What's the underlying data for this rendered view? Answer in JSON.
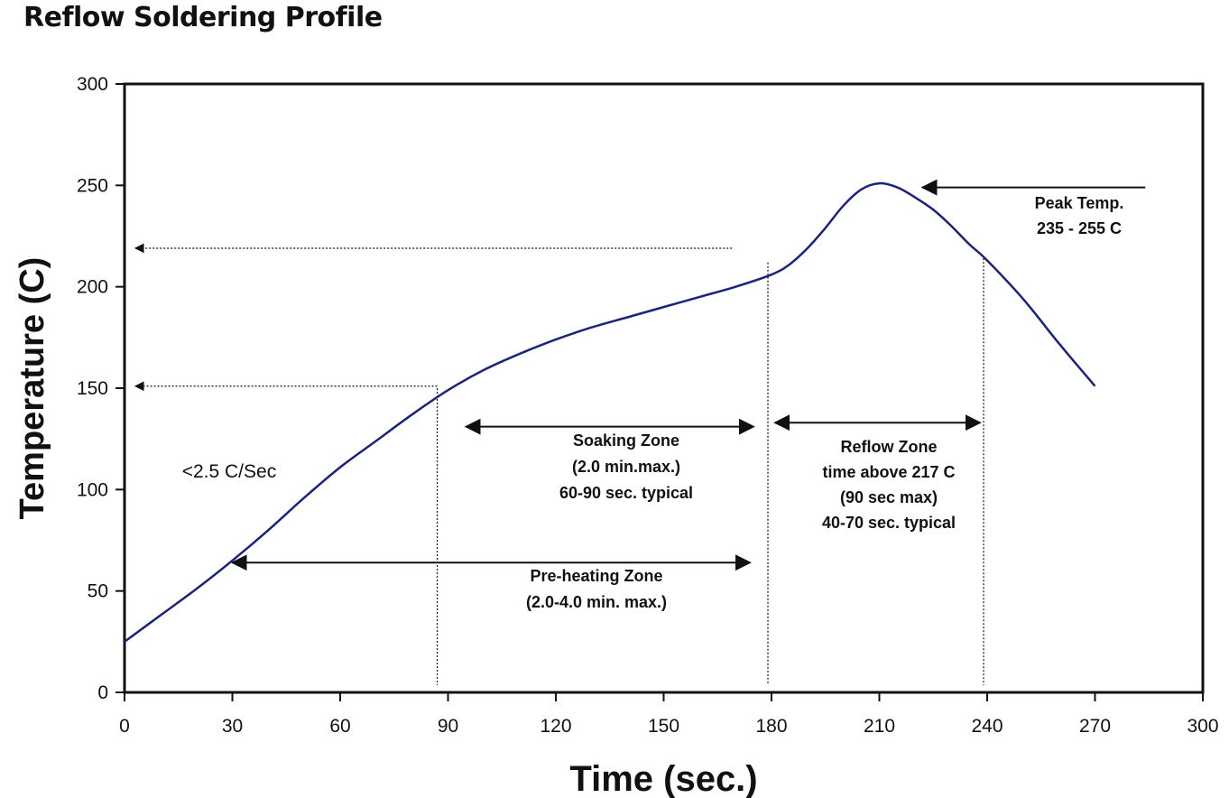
{
  "title": "Reflow Soldering Profile",
  "chart_data": {
    "type": "line",
    "xlabel": "Time (sec.)",
    "ylabel": "Temperature (C)",
    "xlim": [
      0,
      300
    ],
    "ylim": [
      0,
      300
    ],
    "x_ticks": [
      0,
      30,
      60,
      90,
      120,
      150,
      180,
      210,
      240,
      270,
      300
    ],
    "y_ticks": [
      0,
      50,
      100,
      150,
      200,
      250,
      300
    ],
    "grid": false,
    "colors": {
      "curve": "#1a237e",
      "ink": "#111111"
    },
    "series": [
      {
        "x": [
          0,
          10,
          20,
          30,
          40,
          50,
          60,
          70,
          80,
          90,
          100,
          110,
          120,
          130,
          140,
          150,
          160,
          170,
          180,
          185,
          190,
          195,
          200,
          205,
          210,
          215,
          220,
          225,
          230,
          235,
          240,
          250,
          260,
          270
        ],
        "y": [
          25,
          38,
          51,
          65,
          80,
          96,
          111,
          124,
          137,
          149,
          159,
          167,
          174,
          180,
          185,
          190,
          195,
          200,
          206,
          211,
          219,
          229,
          240,
          248,
          251,
          249,
          244,
          238,
          230,
          221,
          213,
          194,
          172,
          151
        ]
      }
    ],
    "annotations": {
      "rate": "<2.5 C/Sec",
      "soaking": [
        "Soaking Zone",
        "(2.0 min.max.)",
        "60-90 sec. typical"
      ],
      "preheating": [
        "Pre-heating Zone",
        "(2.0-4.0 min. max.)"
      ],
      "reflow": [
        "Reflow Zone",
        "time above 217 C",
        "(90 sec max)",
        "40-70 sec. typical"
      ],
      "peak": [
        "Peak Temp.",
        "235 - 255 C"
      ]
    }
  }
}
